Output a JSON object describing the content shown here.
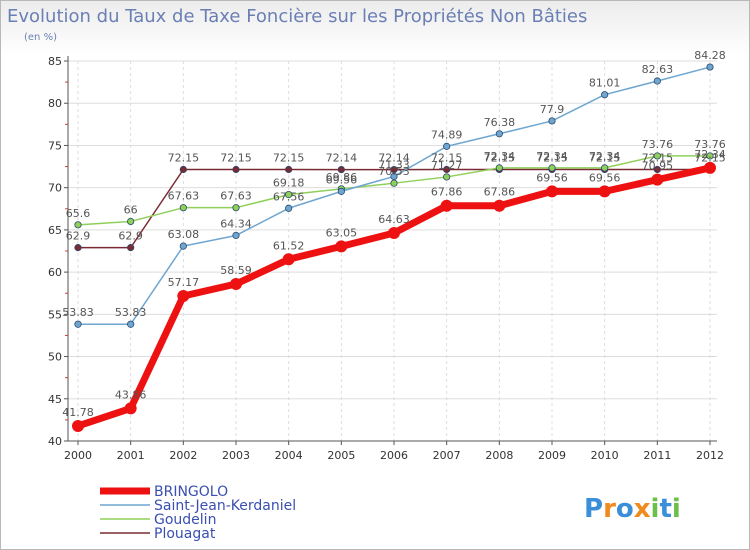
{
  "chart_data": {
    "type": "line",
    "title": "Evolution du Taux de Taxe Foncière sur les Propriétés Non Bâties",
    "subtitle": "(en %)",
    "xlabel": "",
    "ylabel": "",
    "ylim": [
      40,
      85
    ],
    "yticks": [
      "40",
      "45",
      "50",
      "55",
      "60",
      "65",
      "70",
      "75",
      "80",
      "85"
    ],
    "grid": true,
    "categories": [
      "2000",
      "2001",
      "2002",
      "2003",
      "2004",
      "2005",
      "2006",
      "2007",
      "2008",
      "2009",
      "2010",
      "2011",
      "2012"
    ],
    "legend_position": "bottom-left",
    "series": [
      {
        "name": "Plouagat",
        "color": "#7a2a33",
        "values": [
          62.9,
          62.9,
          72.15,
          72.15,
          72.15,
          72.14,
          72.14,
          72.15,
          72.15,
          72.15,
          72.15,
          72.15,
          72.15
        ],
        "labels": [
          "62.9",
          "62.9",
          "72.15",
          "72.15",
          "72.15",
          "72.14",
          "72.14",
          "72.15",
          "72.15",
          "72.15",
          "72.15",
          "72.15",
          "72.15"
        ]
      },
      {
        "name": "Goudelin",
        "color": "#8fd05a",
        "values": [
          65.6,
          66,
          67.63,
          67.63,
          69.18,
          69.86,
          70.53,
          71.27,
          72.34,
          72.34,
          72.34,
          73.76,
          73.76
        ],
        "labels": [
          "65.6",
          "66",
          "67.63",
          "67.63",
          "69.18",
          "69.86",
          "70.53",
          "71.27",
          "72.34",
          "72.34",
          "72.34",
          "73.76",
          "73.76"
        ]
      },
      {
        "name": "Saint-Jean-Kerdaniel",
        "color": "#6fa6cf",
        "values": [
          53.83,
          53.83,
          63.08,
          64.34,
          67.56,
          69.56,
          71.33,
          74.89,
          76.38,
          77.9,
          81.01,
          82.63,
          84.28
        ],
        "labels": [
          "53.83",
          "53.83",
          "63.08",
          "64.34",
          "67.56",
          "69.56",
          "71.33",
          "74.89",
          "76.38",
          "77.9",
          "81.01",
          "82.63",
          "84.28"
        ]
      },
      {
        "name": "BRINGOLO",
        "color": "#ee1111",
        "values": [
          41.78,
          43.86,
          57.17,
          58.59,
          61.52,
          63.05,
          64.63,
          67.86,
          67.86,
          69.56,
          69.56,
          70.95,
          72.34
        ],
        "labels": [
          "41.78",
          "43.86",
          "57.17",
          "58.59",
          "61.52",
          "63.05",
          "64.63",
          "67.86",
          "67.86",
          "69.56",
          "69.56",
          "70.95",
          "72.34"
        ]
      }
    ],
    "legend": [
      "BRINGOLO",
      "Saint-Jean-Kerdaniel",
      "Goudelin",
      "Plouagat"
    ]
  },
  "logo": {
    "letters": [
      "P",
      "r",
      "o",
      "x",
      "i",
      "t",
      "i"
    ],
    "colors": [
      "#3a8fd8",
      "#f08a1c",
      "#3a8fd8",
      "#f08a1c",
      "#6cc04a",
      "#3a8fd8",
      "#6cc04a"
    ]
  }
}
